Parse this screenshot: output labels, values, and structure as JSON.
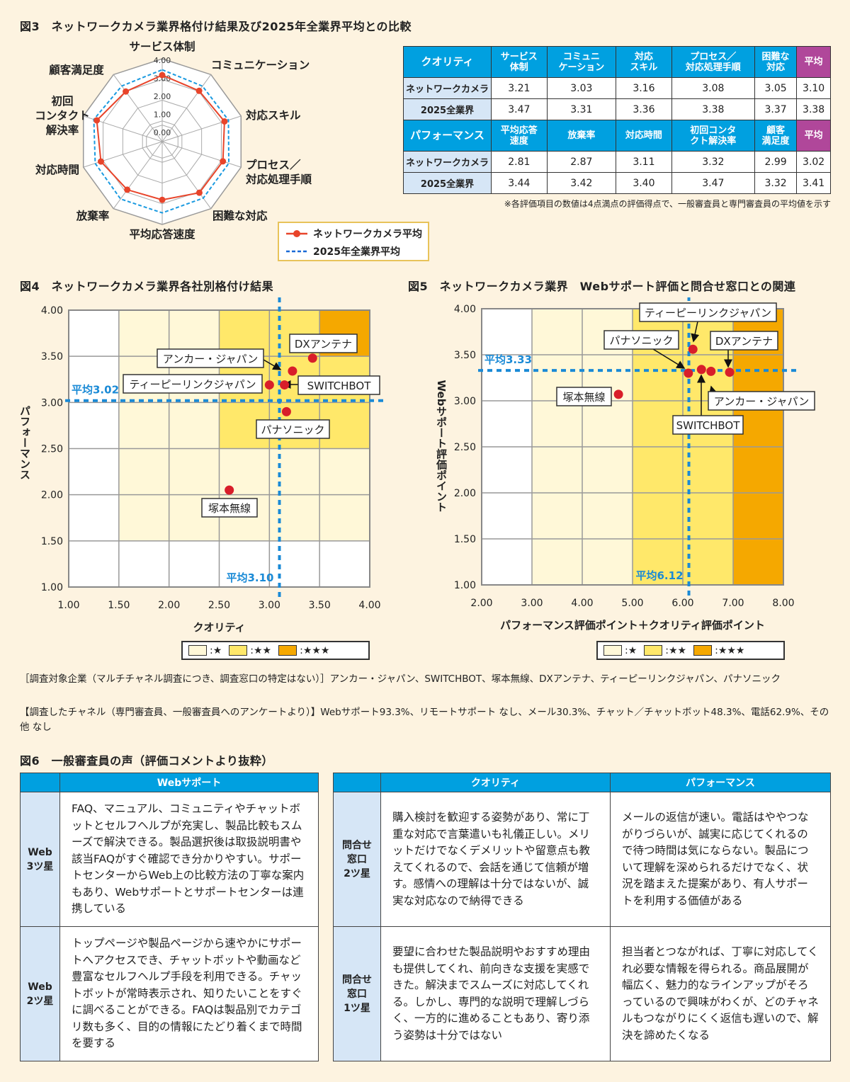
{
  "colors": {
    "blue_header": "#00a0e0",
    "purple": "#b0479a",
    "row_header": "#d6e6f6",
    "red": "#d81e2a",
    "avg_line": "#1a8ad6",
    "zone1": "#fff8d8",
    "zone2": "#ffe86a",
    "zone3": "#f5a800",
    "bg": "#fdf3e0"
  },
  "fig3": {
    "title": "図3　ネットワークカメラ業界格付け結果及び2025年全業界平均との比較",
    "table": {
      "quality_header": [
        "クオリティ",
        "サービス\n体制",
        "コミュニ\nケーション",
        "対応\nスキル",
        "プロセス／\n対応処理手順",
        "困難な\n対応",
        "平均"
      ],
      "quality_rows": [
        [
          "ネットワークカメラ",
          "3.21",
          "3.03",
          "3.16",
          "3.08",
          "3.05",
          "3.10"
        ],
        [
          "2025全業界",
          "3.47",
          "3.31",
          "3.36",
          "3.38",
          "3.37",
          "3.38"
        ]
      ],
      "performance_header": [
        "パフォーマンス",
        "平均応答\n速度",
        "放棄率",
        "対応時間",
        "初回コンタ\nクト解決率",
        "顧客\n満足度",
        "平均"
      ],
      "performance_rows": [
        [
          "ネットワークカメラ",
          "2.81",
          "2.87",
          "3.11",
          "3.32",
          "2.99",
          "3.02"
        ],
        [
          "2025全業界",
          "3.44",
          "3.42",
          "3.40",
          "3.47",
          "3.32",
          "3.41"
        ]
      ]
    },
    "note": "※各評価項目の数値は4点満点の評価得点で、一般審査員と専門審査員の平均値を示す"
  },
  "fig4": {
    "title": "図4　ネットワークカメラ業界各社別格付け結果"
  },
  "fig5": {
    "title": "図5　ネットワークカメラ業界　Webサポート評価と問合せ窓口との関連"
  },
  "chart_data": [
    {
      "type": "radar",
      "id": "radar",
      "axes": [
        "サービス体制",
        "コミュニケーション",
        "対応スキル",
        "プロセス／対応処理手順",
        "困難な対応",
        "平均応答速度",
        "放棄率",
        "対応時間",
        "初回コンタクト解決率",
        "顧客満足度"
      ],
      "rlim": [
        0,
        4
      ],
      "ticks": [
        "0.00",
        "1.00",
        "2.00",
        "3.00",
        "4.00"
      ],
      "series": [
        {
          "name": "ネットワークカメラ平均",
          "values": [
            3.21,
            3.03,
            3.16,
            3.08,
            3.05,
            2.81,
            2.87,
            3.11,
            3.32,
            2.99
          ],
          "color": "#e8442a",
          "style": "solid-marker"
        },
        {
          "name": "2025年全業界平均",
          "values": [
            3.47,
            3.31,
            3.36,
            3.38,
            3.37,
            3.44,
            3.42,
            3.4,
            3.47,
            3.32
          ],
          "color": "#1a9ae0",
          "style": "dashed"
        }
      ],
      "legend": "bottom-right"
    },
    {
      "type": "scatter",
      "id": "fig4",
      "xlabel": "クオリティ",
      "ylabel": "パフォーマンス",
      "xlim": [
        1,
        4
      ],
      "ylim": [
        1,
        4
      ],
      "xticks": [
        "1.00",
        "1.50",
        "2.00",
        "2.50",
        "3.00",
        "3.50",
        "4.00"
      ],
      "yticks": [
        "1.00",
        "1.50",
        "2.00",
        "2.50",
        "3.00",
        "3.50",
        "4.00"
      ],
      "avg_x": 3.1,
      "avg_x_label": "平均3.10",
      "avg_y": 3.02,
      "avg_y_label": "平均3.02",
      "points": [
        {
          "name": "DXアンテナ",
          "x": 3.43,
          "y": 3.48
        },
        {
          "name": "アンカー・ジャパン",
          "x": 3.23,
          "y": 3.34
        },
        {
          "name": "ティーピーリンクジャパン",
          "x": 3.0,
          "y": 3.19
        },
        {
          "name": "SWITCHBOT",
          "x": 3.15,
          "y": 3.19
        },
        {
          "name": "パナソニック",
          "x": 3.17,
          "y": 2.9
        },
        {
          "name": "塚本無線",
          "x": 2.6,
          "y": 2.05
        }
      ],
      "legend": [
        ":★",
        ":★★",
        ":★★★"
      ]
    },
    {
      "type": "scatter",
      "id": "fig5",
      "xlabel": "パフォーマンス評価ポイント＋クオリティ評価ポイント",
      "ylabel": "Webサポート評価ポイント",
      "xlim": [
        2,
        8
      ],
      "ylim": [
        1,
        4
      ],
      "xticks": [
        "2.00",
        "3.00",
        "4.00",
        "5.00",
        "6.00",
        "7.00",
        "8.00"
      ],
      "yticks": [
        "1.00",
        "1.50",
        "2.00",
        "2.50",
        "3.00",
        "3.50",
        "4.00"
      ],
      "avg_x": 6.12,
      "avg_x_label": "平均6.12",
      "avg_y": 3.33,
      "avg_y_label": "平均3.33",
      "points": [
        {
          "name": "ティーピーリンクジャパン",
          "x": 6.2,
          "y": 3.56
        },
        {
          "name": "パナソニック",
          "x": 6.11,
          "y": 3.3
        },
        {
          "name": "DXアンテナ",
          "x": 6.93,
          "y": 3.31
        },
        {
          "name": "塚本無線",
          "x": 4.72,
          "y": 3.07
        },
        {
          "name": "アンカー・ジャパン",
          "x": 6.56,
          "y": 3.32
        },
        {
          "name": "SWITCHBOT",
          "x": 6.37,
          "y": 3.34
        }
      ],
      "legend": [
        ":★",
        ":★★",
        ":★★★"
      ]
    }
  ],
  "survey": {
    "companies": "［調査対象企業（マルチチャネル調査につき、調査窓口の特定はない）］アンカー・ジャパン、SWITCHBOT、塚本無線、DXアンテナ、ティーピーリンクジャパン、パナソニック",
    "channels": "【調査したチャネル（専門審査員、一般審査員へのアンケートより）】Webサポート93.3%、リモートサポート なし、メール30.3%、チャット／チャットボット48.3%、電話62.9%、その他 なし"
  },
  "fig6": {
    "title": "図6　一般審査員の声（評価コメントより抜粋）",
    "web": {
      "header": "Webサポート",
      "rows": [
        {
          "label": "Web\n3ツ星",
          "comment": "FAQ、マニュアル、コミュニティやチャットボットとセルフヘルプが充実し、製品比較もスムーズで解決できる。製品選択後は取扱説明書や該当FAQがすぐ確認でき分かりやすい。サポートセンターからWeb上の比較方法の丁寧な案内もあり、Webサポートとサポートセンターは連携している"
        },
        {
          "label": "Web\n2ツ星",
          "comment": "トップページや製品ページから速やかにサポートへアクセスでき、チャットボットや動画など豊富なセルフヘルプ手段を利用できる。チャットボットが常時表示され、知りたいことをすぐに調べることができる。FAQは製品別でカテゴリ数も多く、目的の情報にたどり着くまで時間を要する"
        }
      ]
    },
    "contact": {
      "headers": [
        "クオリティ",
        "パフォーマンス"
      ],
      "rows": [
        {
          "label": "問合せ\n窓口\n2ツ星",
          "quality": "購入検討を歓迎する姿勢があり、常に丁重な対応で言葉遣いも礼儀正しい。メリットだけでなくデメリットや留意点も教えてくれるので、会話を通じて信頼が増す。感情への理解は十分ではないが、誠実な対応なので納得できる",
          "performance": "メールの返信が速い。電話はややつながりづらいが、誠実に応じてくれるので待つ時間は気にならない。製品について理解を深められるだけでなく、状況を踏まえた提案があり、有人サポートを利用する価値がある"
        },
        {
          "label": "問合せ\n窓口\n1ツ星",
          "quality": "要望に合わせた製品説明やおすすめ理由も提供してくれ、前向きな支援を実感できた。解決までスムーズに対応してくれる。しかし、専門的な説明で理解しづらく、一方的に進めることもあり、寄り添う姿勢は十分ではない",
          "performance": "担当者とつながれば、丁寧に対応してくれ必要な情報を得られる。商品展開が幅広く、魅力的なラインアップがそろっているので興味がわくが、どのチャネルもつながりにくく返信も遅いので、解決を諦めたくなる"
        }
      ]
    }
  }
}
